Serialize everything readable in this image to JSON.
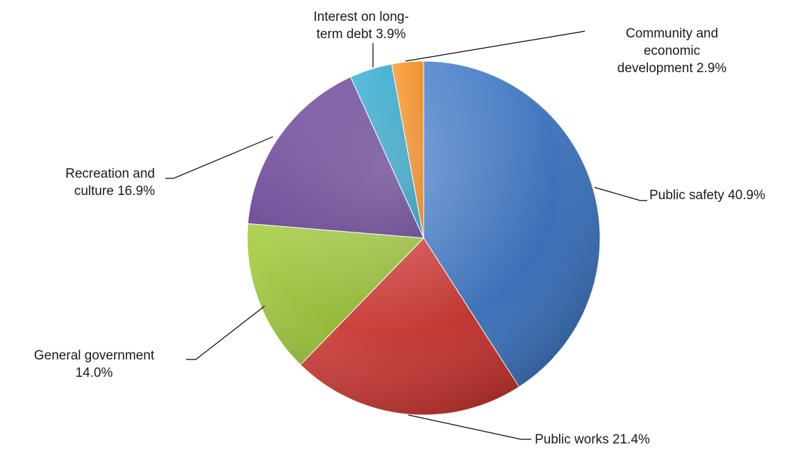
{
  "chart_data": {
    "type": "pie",
    "title": "",
    "slices": [
      {
        "name": "Public safety",
        "value": 40.9,
        "label_lines": [
          "Public safety 40.9%"
        ],
        "color": "#3e72b8"
      },
      {
        "name": "Public works",
        "value": 21.4,
        "label_lines": [
          "Public works 21.4%"
        ],
        "color": "#c23a36"
      },
      {
        "name": "General government",
        "value": 14.0,
        "label_lines": [
          "General government",
          "14.0%"
        ],
        "color": "#97bb3e"
      },
      {
        "name": "Recreation and culture",
        "value": 16.9,
        "label_lines": [
          "Recreation and",
          "culture 16.9%"
        ],
        "color": "#6e4d97"
      },
      {
        "name": "Interest on long-term debt",
        "value": 3.9,
        "label_lines": [
          "Interest on long-",
          "term debt 3.9%"
        ],
        "color": "#33a1c2"
      },
      {
        "name": "Community and economic development",
        "value": 2.9,
        "label_lines": [
          "Community and",
          "economic",
          "development 2.9%"
        ],
        "color": "#f08a24"
      }
    ]
  }
}
